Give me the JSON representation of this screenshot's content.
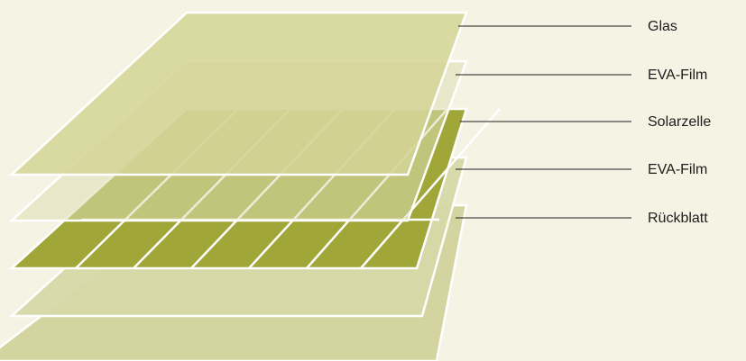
{
  "diagram": {
    "colors": {
      "background": "#f5f4e4",
      "backsheet": "#d4d4a0",
      "eva": "#d6d8a8",
      "solar_cell": "#a0a637",
      "glass": "#d5d59c",
      "grid_line": "#ffffff",
      "leader_line": "#1c1c1c"
    },
    "layers": [
      {
        "id": "glas",
        "label": "Glas"
      },
      {
        "id": "eva-top",
        "label": "EVA-Film"
      },
      {
        "id": "solarzelle",
        "label": "Solarzelle"
      },
      {
        "id": "eva-bottom",
        "label": "EVA-Film"
      },
      {
        "id": "rueckblatt",
        "label": "Rückblatt"
      }
    ]
  }
}
